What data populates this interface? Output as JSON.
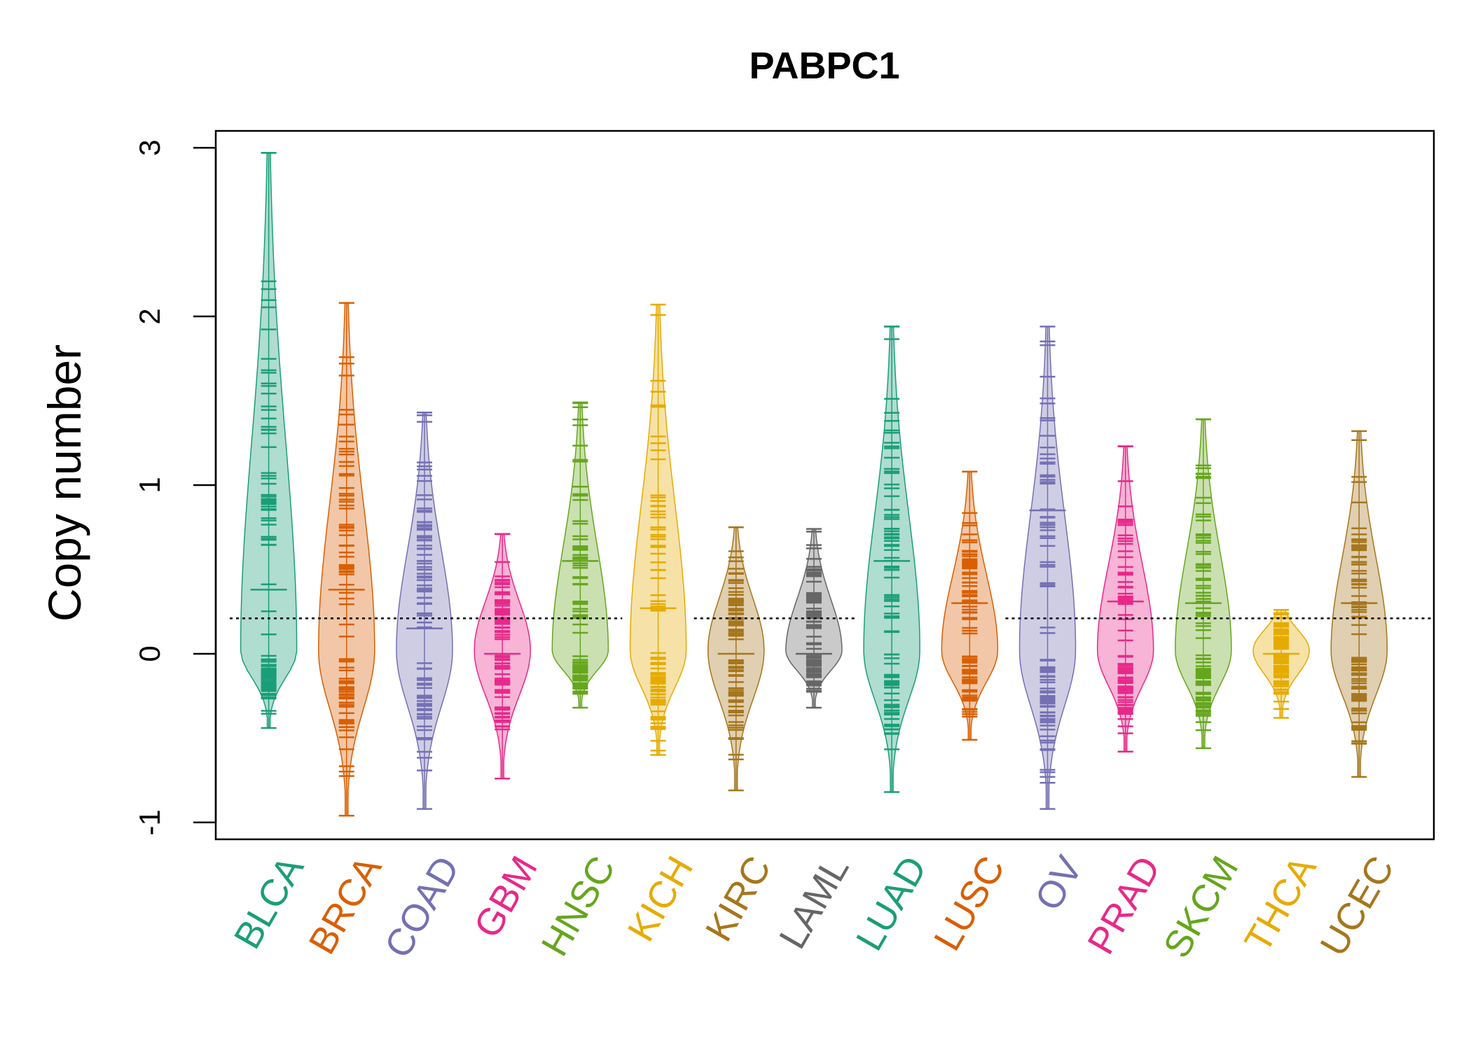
{
  "chart_data": {
    "type": "beanplot",
    "title": "PABPC1",
    "xlabel": "",
    "ylabel": "Copy number",
    "ylim": [
      -1.1,
      3.1
    ],
    "yticks": [
      -1,
      0,
      1,
      2,
      3
    ],
    "reference_line": 0.21,
    "grid": false,
    "legend": "none",
    "categories": [
      "BLCA",
      "BRCA",
      "COAD",
      "GBM",
      "HNSC",
      "KICH",
      "KIRC",
      "LAML",
      "LUAD",
      "LUSC",
      "OV",
      "PRAD",
      "SKCM",
      "THCA",
      "UCEC"
    ],
    "colors": [
      "#1b9e77",
      "#d95f02",
      "#7570b3",
      "#e7298a",
      "#66a61e",
      "#e6ab02",
      "#a6761d",
      "#666666",
      "#1b9e77",
      "#d95f02",
      "#7570b3",
      "#e7298a",
      "#66a61e",
      "#e6ab02",
      "#a6761d"
    ],
    "series": [
      {
        "name": "BLCA",
        "min": -0.44,
        "max": 2.97,
        "mean": 0.38
      },
      {
        "name": "BRCA",
        "min": -0.96,
        "max": 2.08,
        "mean": 0.38
      },
      {
        "name": "COAD",
        "min": -0.92,
        "max": 1.43,
        "mean": 0.15
      },
      {
        "name": "GBM",
        "min": -0.74,
        "max": 0.71,
        "mean": 0.0
      },
      {
        "name": "HNSC",
        "min": -0.32,
        "max": 1.49,
        "mean": 0.55
      },
      {
        "name": "KICH",
        "min": -0.6,
        "max": 2.07,
        "mean": 0.27
      },
      {
        "name": "KIRC",
        "min": -0.81,
        "max": 0.75,
        "mean": 0.0
      },
      {
        "name": "LAML",
        "min": -0.32,
        "max": 0.74,
        "mean": 0.0
      },
      {
        "name": "LUAD",
        "min": -0.82,
        "max": 1.94,
        "mean": 0.55
      },
      {
        "name": "LUSC",
        "min": -0.51,
        "max": 1.08,
        "mean": 0.3
      },
      {
        "name": "OV",
        "min": -0.92,
        "max": 1.94,
        "mean": 0.85
      },
      {
        "name": "PRAD",
        "min": -0.58,
        "max": 1.23,
        "mean": 0.31
      },
      {
        "name": "SKCM",
        "min": -0.56,
        "max": 1.39,
        "mean": 0.3
      },
      {
        "name": "THCA",
        "min": -0.38,
        "max": 0.26,
        "mean": 0.0
      },
      {
        "name": "UCEC",
        "min": -0.73,
        "max": 1.32,
        "mean": 0.3
      }
    ]
  }
}
